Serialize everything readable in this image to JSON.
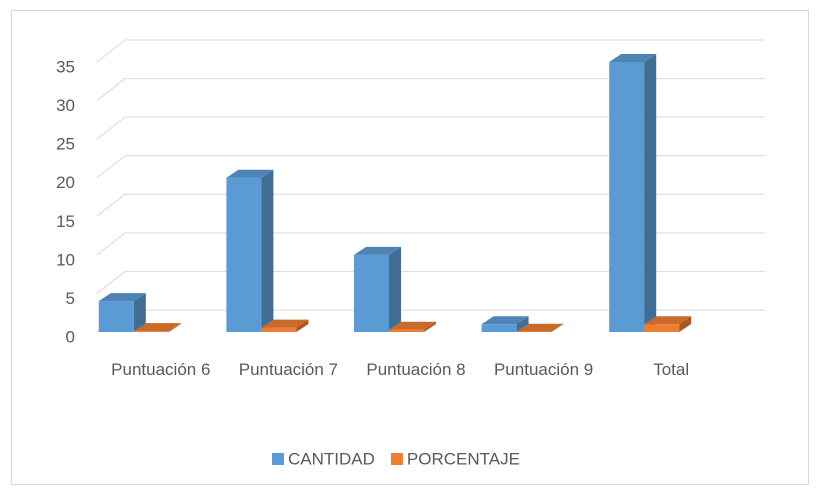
{
  "chart_data": {
    "type": "bar3d",
    "categories": [
      "Puntuación 6",
      "Puntuación 7",
      "Puntuación 8",
      "Puntuación 9",
      "Total"
    ],
    "series": [
      {
        "name": "CANTIDAD",
        "color": "#5b9bd5",
        "values": [
          4,
          20,
          10,
          1,
          35
        ]
      },
      {
        "name": "PORCENTAJE",
        "color": "#ed7d31",
        "values": [
          0.11,
          0.57,
          0.29,
          0.03,
          1
        ]
      }
    ],
    "ylim": [
      0,
      35
    ],
    "yticks": [
      0,
      5,
      10,
      15,
      20,
      25,
      30,
      35
    ],
    "grid": true,
    "legend": "bottom"
  }
}
